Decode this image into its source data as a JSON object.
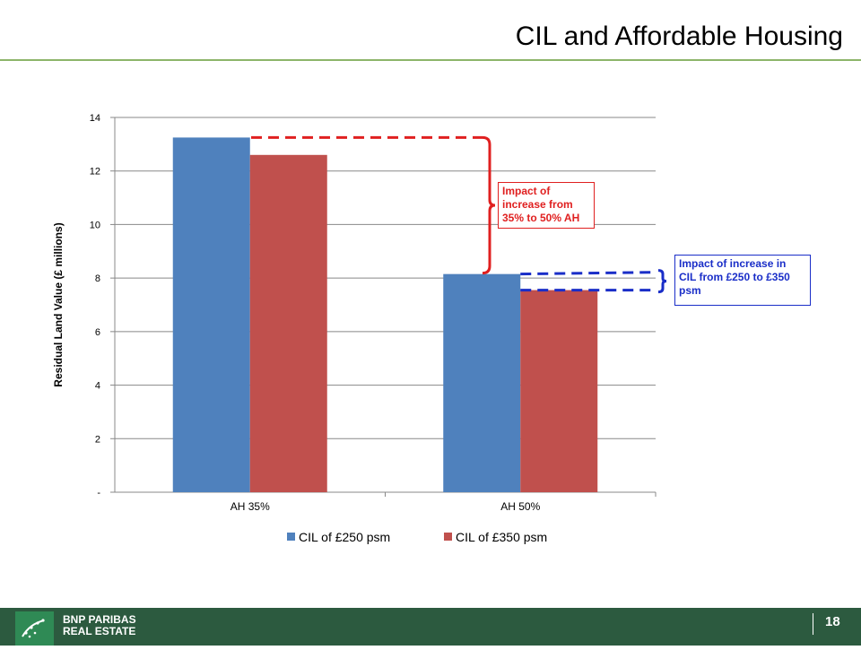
{
  "slide": {
    "title": "CIL and Affordable Housing",
    "page_number": "18"
  },
  "footer": {
    "logo_line1": "BNP PARIBAS",
    "logo_line2": "REAL ESTATE"
  },
  "callouts": {
    "red": "Impact of increase from 35% to 50% AH",
    "blue": "Impact of increase in CIL from £250 to £350 psm"
  },
  "colors": {
    "series_1": "#4f81bd",
    "series_2": "#c0504d",
    "red_annotation": "#e02020",
    "blue_annotation": "#1a2ec8",
    "footer_bg": "#2c5a3f",
    "title_rule": "#8db56a"
  },
  "chart_data": {
    "type": "bar",
    "categories": [
      "AH 35%",
      "AH 50%"
    ],
    "series": [
      {
        "name": "CIL of £250 psm",
        "values": [
          13.25,
          8.15
        ]
      },
      {
        "name": "CIL of £350 psm",
        "values": [
          12.6,
          7.55
        ]
      }
    ],
    "ylabel": "Residual Land Value (£ millions)",
    "xlabel": "",
    "ylim": [
      0,
      14
    ],
    "y_ticks": [
      0,
      2,
      4,
      6,
      8,
      10,
      12,
      14
    ],
    "y_tick_labels": [
      "-",
      "2",
      "4",
      "6",
      "8",
      "10",
      "12",
      "14"
    ],
    "grid": true,
    "legend": "bottom"
  }
}
